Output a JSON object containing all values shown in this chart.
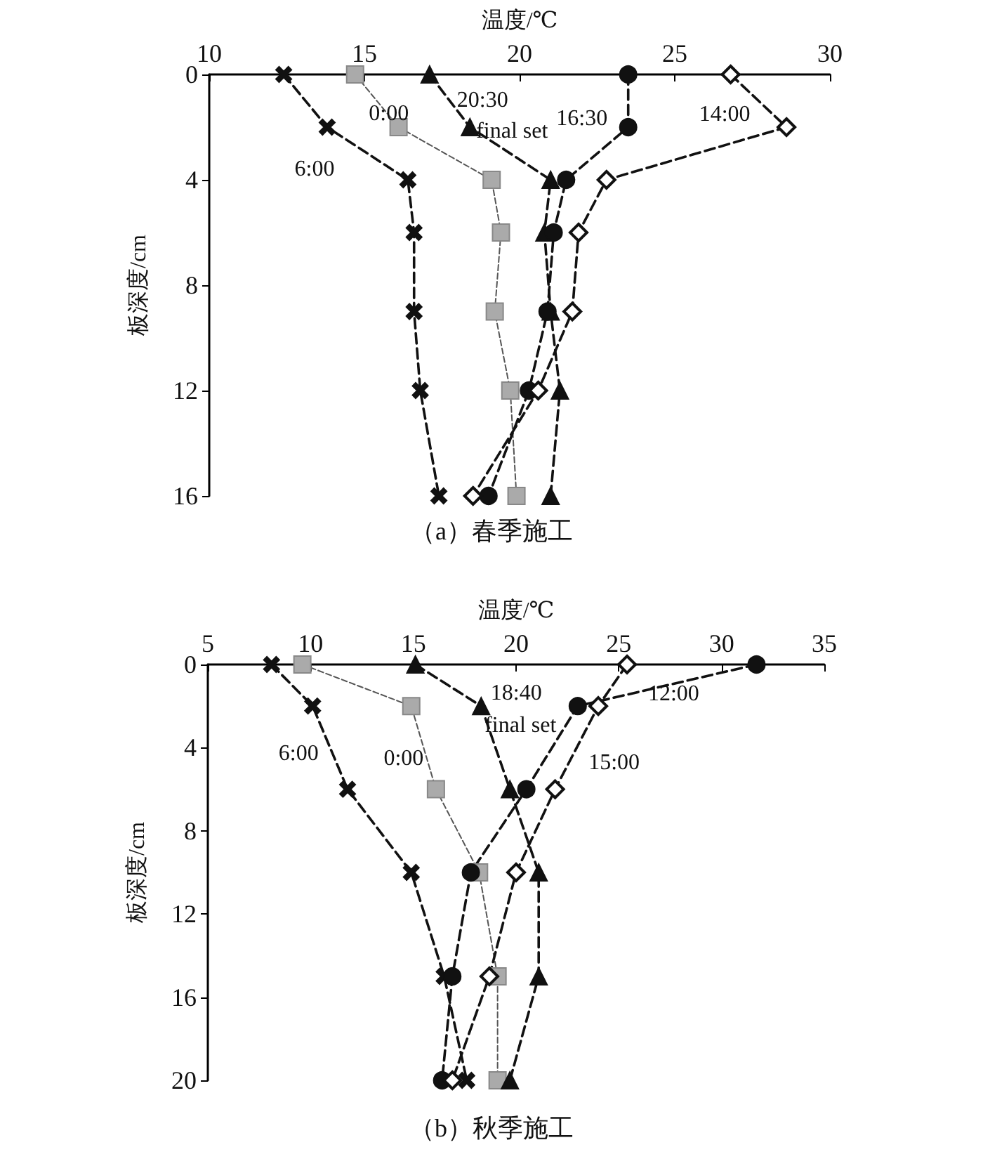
{
  "chart_data": [
    {
      "type": "line",
      "title": "（a）春季施工",
      "xlabel": "温度/℃",
      "ylabel": "板深度/cm",
      "xlim": [
        10,
        30
      ],
      "xticks": [
        10,
        15,
        20,
        25,
        30
      ],
      "ylim": [
        16,
        0
      ],
      "yticks": [
        0,
        4,
        8,
        12,
        16
      ],
      "grid": false,
      "legend": false,
      "line_style": "dashed",
      "series": [
        {
          "name": "6:00",
          "color": "#111111",
          "marker": "cross",
          "x": [
            12.4,
            13.8,
            16.4,
            16.6,
            16.6,
            16.8,
            17.4
          ],
          "values": [
            0,
            2,
            4,
            6,
            9,
            12,
            16
          ]
        },
        {
          "name": "0:00",
          "color": "#aaaaaa",
          "marker": "square",
          "x": [
            14.7,
            16.1,
            19.1,
            19.4,
            19.2,
            19.7,
            19.9
          ],
          "values": [
            0,
            2,
            4,
            6,
            9,
            12,
            16
          ]
        },
        {
          "name": "20:30",
          "color": "#111111",
          "marker": "triangle",
          "x": [
            17.1,
            18.4,
            21.0,
            20.8,
            21.0,
            21.3,
            21.0
          ],
          "values": [
            0,
            2,
            4,
            6,
            9,
            12,
            16
          ]
        },
        {
          "name": "16:30",
          "color": "#111111",
          "marker": "circle",
          "x": [
            23.5,
            23.5,
            21.5,
            21.1,
            20.9,
            20.3,
            19.0
          ],
          "values": [
            0,
            2,
            4,
            6,
            9,
            12,
            16
          ]
        },
        {
          "name": "14:00",
          "color": "#111111",
          "marker": "diamond",
          "x": [
            26.8,
            28.6,
            22.8,
            21.9,
            21.7,
            20.6,
            18.5
          ],
          "values": [
            0,
            2,
            4,
            6,
            9,
            12,
            16
          ]
        }
      ],
      "annotations": [
        "final set"
      ]
    },
    {
      "type": "line",
      "title": "（b）秋季施工",
      "xlabel": "温度/℃",
      "ylabel": "板深度/cm",
      "xlim": [
        5,
        35
      ],
      "xticks": [
        5,
        10,
        15,
        20,
        25,
        30,
        35
      ],
      "ylim": [
        20,
        0
      ],
      "yticks": [
        0,
        4,
        8,
        12,
        16,
        20
      ],
      "grid": false,
      "legend": false,
      "line_style": "dashed",
      "series": [
        {
          "name": "6:00",
          "color": "#111111",
          "marker": "cross",
          "x": [
            8.1,
            10.1,
            11.8,
            14.9,
            16.5,
            17.6
          ],
          "values": [
            0,
            2,
            6,
            10,
            15,
            20
          ]
        },
        {
          "name": "0:00",
          "color": "#aaaaaa",
          "marker": "square",
          "x": [
            9.6,
            14.9,
            16.1,
            18.2,
            19.1,
            19.1
          ],
          "values": [
            0,
            2,
            6,
            10,
            15,
            20
          ]
        },
        {
          "name": "18:40",
          "color": "#111111",
          "marker": "triangle",
          "x": [
            15.1,
            18.3,
            19.7,
            21.1,
            21.1,
            19.7
          ],
          "values": [
            0,
            2,
            6,
            10,
            15,
            20
          ]
        },
        {
          "name": "12:00",
          "color": "#111111",
          "marker": "circle",
          "x": [
            31.7,
            23.0,
            20.5,
            17.8,
            16.9,
            16.4
          ],
          "values": [
            0,
            2,
            6,
            10,
            15,
            20
          ]
        },
        {
          "name": "15:00",
          "color": "#111111",
          "marker": "diamond",
          "x": [
            25.4,
            24.0,
            21.9,
            20.0,
            18.7,
            16.9
          ],
          "values": [
            0,
            2,
            6,
            10,
            15,
            20
          ]
        }
      ],
      "annotations": [
        "final set"
      ]
    }
  ]
}
